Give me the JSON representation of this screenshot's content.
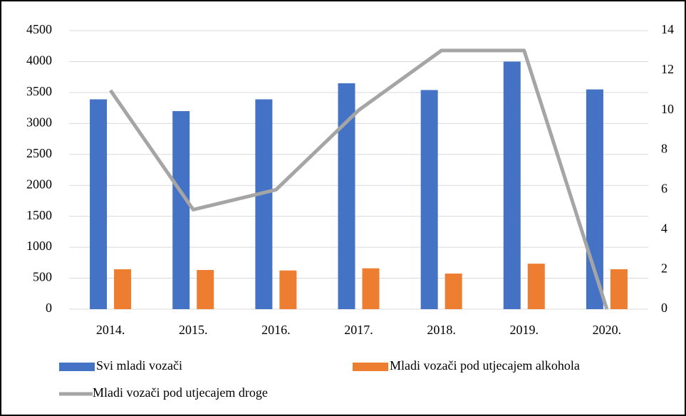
{
  "chart_data": {
    "type": "bar",
    "categories": [
      "2014.",
      "2015.",
      "2016.",
      "2017.",
      "2018.",
      "2019.",
      "2020."
    ],
    "series": [
      {
        "name": "Svi mladi vozači",
        "color": "#4472c4",
        "values": [
          3390,
          3200,
          3390,
          3650,
          3540,
          4000,
          3550
        ]
      },
      {
        "name": "Mladi vozači pod utjecajem alkohola",
        "color": "#ed7d31",
        "values": [
          645,
          633,
          625,
          660,
          575,
          735,
          645
        ]
      },
      {
        "name": "Mladi vozači pod utjecajem droge",
        "color": "#a5a5a5",
        "type": "line",
        "axis": "y2",
        "values": [
          11,
          5,
          6,
          10,
          13,
          13,
          0
        ]
      }
    ],
    "ylim": [
      0,
      4500
    ],
    "yticks": [
      0,
      500,
      1000,
      1500,
      2000,
      2500,
      3000,
      3500,
      4000,
      4500
    ],
    "y2lim": [
      0,
      14
    ],
    "y2ticks": [
      0,
      2,
      4,
      6,
      8,
      10,
      12,
      14
    ],
    "grid": true,
    "legend": "bottom"
  }
}
